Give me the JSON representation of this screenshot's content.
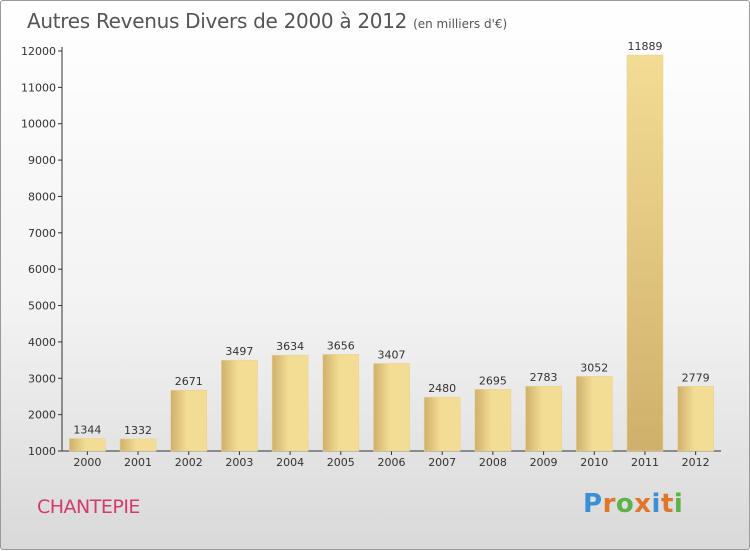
{
  "header": {
    "title": "Autres Revenus Divers de 2000 à 2012",
    "unit": "(en milliers d'€)"
  },
  "footer": {
    "commune": "CHANTEPIE",
    "brand": "Proxiti"
  },
  "colors": {
    "bar_light": "#f3dc94",
    "bar_dark": "#cfb06a",
    "commune": "#d43a6b",
    "logo": [
      "#3a8fd6",
      "#e0762b",
      "#5db34a",
      "#e0762b",
      "#3a8fd6",
      "#e0762b",
      "#5db34a"
    ]
  },
  "chart_data": {
    "type": "bar",
    "title": "Autres Revenus Divers de 2000 à 2012",
    "subtitle": "(en milliers d'€)",
    "categories": [
      "2000",
      "2001",
      "2002",
      "2003",
      "2004",
      "2005",
      "2006",
      "2007",
      "2008",
      "2009",
      "2010",
      "2011",
      "2012"
    ],
    "values": [
      1344,
      1332,
      2671,
      3497,
      3634,
      3656,
      3407,
      2480,
      2695,
      2783,
      3052,
      11889,
      2779
    ],
    "ylim": [
      1000,
      12000
    ],
    "yticks": [
      1000,
      2000,
      3000,
      4000,
      5000,
      6000,
      7000,
      8000,
      9000,
      10000,
      11000,
      12000
    ],
    "xlabel": "",
    "ylabel": "",
    "grid": false,
    "data_labels": true
  }
}
